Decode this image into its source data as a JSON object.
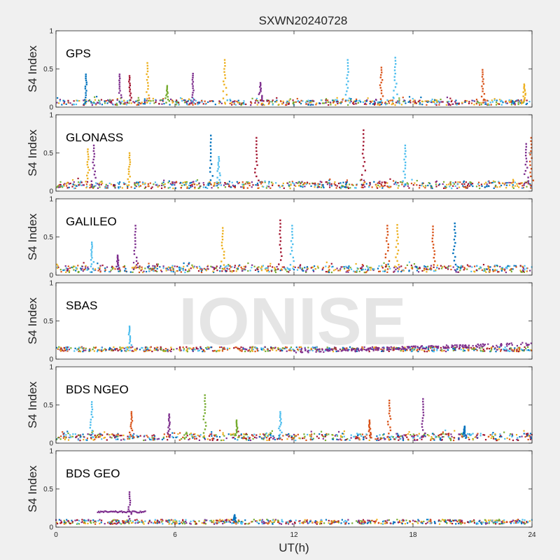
{
  "figure": {
    "title": "SXWN20240728",
    "watermark": "IONISE",
    "xlabel": "UT(h)",
    "ylabel": "S4 Index"
  },
  "colors": {
    "blue": "#0072bd",
    "orange": "#d95319",
    "yellow": "#edb120",
    "purple": "#7e2f8e",
    "green": "#77ac30",
    "cyan": "#4dbeee",
    "maroon": "#a2142f",
    "watermark": "#dcdcdc",
    "background": "#f0f0f0",
    "axes_background": "#ffffff"
  },
  "chart_data": [
    {
      "type": "scatter",
      "panel": "GPS",
      "xlim": [
        0,
        24
      ],
      "ylim": [
        0,
        1
      ],
      "xticks": [
        0,
        6,
        12,
        18,
        24
      ],
      "yticks": [
        0,
        0.5,
        1
      ],
      "show_xticklabels": false,
      "baseline": 0.06,
      "spikes": [
        {
          "x": 1.5,
          "y": 0.43,
          "series": "blue"
        },
        {
          "x": 3.2,
          "y": 0.43,
          "series": "purple"
        },
        {
          "x": 3.7,
          "y": 0.41,
          "series": "maroon"
        },
        {
          "x": 4.6,
          "y": 0.58,
          "series": "yellow"
        },
        {
          "x": 5.6,
          "y": 0.28,
          "series": "green"
        },
        {
          "x": 6.9,
          "y": 0.44,
          "series": "purple"
        },
        {
          "x": 8.5,
          "y": 0.62,
          "series": "yellow"
        },
        {
          "x": 10.3,
          "y": 0.32,
          "series": "purple"
        },
        {
          "x": 14.7,
          "y": 0.62,
          "series": "cyan"
        },
        {
          "x": 16.4,
          "y": 0.52,
          "series": "orange"
        },
        {
          "x": 17.1,
          "y": 0.65,
          "series": "cyan"
        },
        {
          "x": 21.5,
          "y": 0.49,
          "series": "orange"
        },
        {
          "x": 23.6,
          "y": 0.3,
          "series": "yellow"
        }
      ]
    },
    {
      "type": "scatter",
      "panel": "GLONASS",
      "xlim": [
        0,
        24
      ],
      "ylim": [
        0,
        1
      ],
      "xticks": [
        0,
        6,
        12,
        18,
        24
      ],
      "yticks": [
        0,
        0.5,
        1
      ],
      "show_xticklabels": false,
      "baseline": 0.08,
      "spikes": [
        {
          "x": 1.6,
          "y": 0.55,
          "series": "yellow"
        },
        {
          "x": 1.9,
          "y": 0.6,
          "series": "purple"
        },
        {
          "x": 3.7,
          "y": 0.5,
          "series": "yellow"
        },
        {
          "x": 7.8,
          "y": 0.73,
          "series": "blue"
        },
        {
          "x": 8.2,
          "y": 0.45,
          "series": "cyan"
        },
        {
          "x": 10.1,
          "y": 0.7,
          "series": "maroon"
        },
        {
          "x": 15.5,
          "y": 0.8,
          "series": "maroon"
        },
        {
          "x": 17.6,
          "y": 0.6,
          "series": "cyan"
        },
        {
          "x": 23.7,
          "y": 0.62,
          "series": "purple"
        },
        {
          "x": 23.95,
          "y": 0.7,
          "series": "orange"
        }
      ]
    },
    {
      "type": "scatter",
      "panel": "GALILEO",
      "xlim": [
        0,
        24
      ],
      "ylim": [
        0,
        1
      ],
      "xticks": [
        0,
        6,
        12,
        18,
        24
      ],
      "yticks": [
        0,
        0.5,
        1
      ],
      "show_xticklabels": false,
      "baseline": 0.08,
      "spikes": [
        {
          "x": 1.8,
          "y": 0.43,
          "series": "cyan"
        },
        {
          "x": 3.1,
          "y": 0.26,
          "series": "purple"
        },
        {
          "x": 4.0,
          "y": 0.65,
          "series": "purple"
        },
        {
          "x": 8.4,
          "y": 0.62,
          "series": "yellow"
        },
        {
          "x": 11.3,
          "y": 0.72,
          "series": "maroon"
        },
        {
          "x": 11.9,
          "y": 0.65,
          "series": "cyan"
        },
        {
          "x": 16.7,
          "y": 0.65,
          "series": "orange"
        },
        {
          "x": 17.2,
          "y": 0.66,
          "series": "yellow"
        },
        {
          "x": 19.0,
          "y": 0.64,
          "series": "orange"
        },
        {
          "x": 20.1,
          "y": 0.68,
          "series": "blue"
        }
      ]
    },
    {
      "type": "scatter",
      "panel": "SBAS",
      "xlim": [
        0,
        24
      ],
      "ylim": [
        0,
        1
      ],
      "xticks": [
        0,
        6,
        12,
        18,
        24
      ],
      "yticks": [
        0,
        0.5,
        1
      ],
      "show_xticklabels": false,
      "baseline": 0.13,
      "spikes": [
        {
          "x": 3.7,
          "y": 0.43,
          "series": "cyan"
        }
      ]
    },
    {
      "type": "scatter",
      "panel": "BDS NGEO",
      "xlim": [
        0,
        24
      ],
      "ylim": [
        0,
        1
      ],
      "xticks": [
        0,
        6,
        12,
        18,
        24
      ],
      "yticks": [
        0,
        0.5,
        1
      ],
      "show_xticklabels": false,
      "baseline": 0.08,
      "spikes": [
        {
          "x": 1.8,
          "y": 0.54,
          "series": "cyan"
        },
        {
          "x": 3.8,
          "y": 0.41,
          "series": "orange"
        },
        {
          "x": 5.7,
          "y": 0.38,
          "series": "purple"
        },
        {
          "x": 7.5,
          "y": 0.63,
          "series": "green"
        },
        {
          "x": 9.1,
          "y": 0.3,
          "series": "green"
        },
        {
          "x": 11.3,
          "y": 0.41,
          "series": "cyan"
        },
        {
          "x": 15.8,
          "y": 0.3,
          "series": "orange"
        },
        {
          "x": 16.8,
          "y": 0.56,
          "series": "orange"
        },
        {
          "x": 18.5,
          "y": 0.58,
          "series": "purple"
        },
        {
          "x": 20.6,
          "y": 0.22,
          "series": "blue"
        }
      ]
    },
    {
      "type": "scatter",
      "panel": "BDS GEO",
      "xlim": [
        0,
        24
      ],
      "ylim": [
        0,
        1
      ],
      "xticks": [
        0,
        6,
        12,
        18,
        24
      ],
      "yticks": [
        0,
        0.5,
        1
      ],
      "show_xticklabels": true,
      "baseline": 0.07,
      "spikes": [
        {
          "x": 3.7,
          "y": 0.46,
          "series": "purple"
        },
        {
          "x": 9.0,
          "y": 0.16,
          "series": "blue"
        }
      ],
      "segments": [
        {
          "x0": 2.1,
          "x1": 4.5,
          "y": 0.2,
          "series": "purple"
        }
      ]
    }
  ]
}
